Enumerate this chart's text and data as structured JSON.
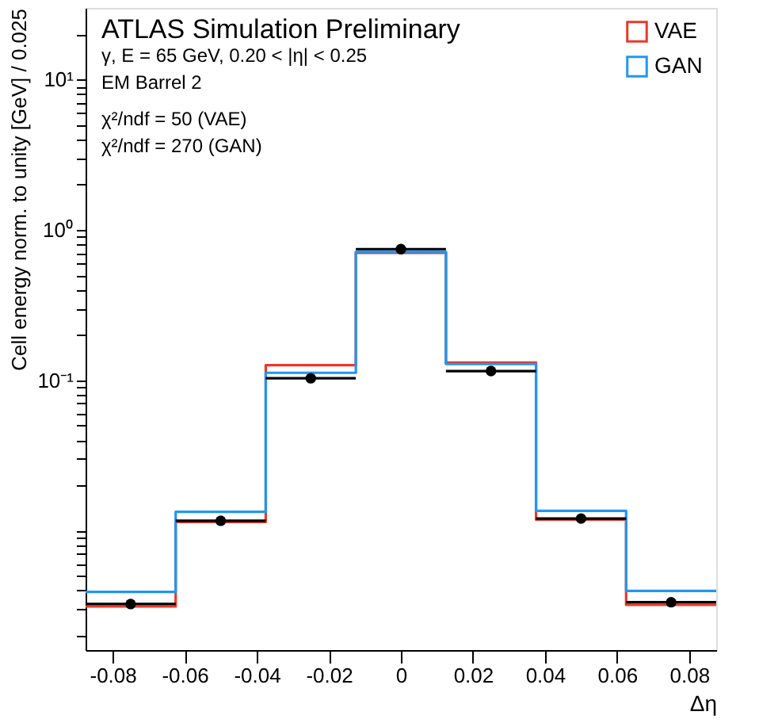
{
  "chart_data": {
    "type": "histogram",
    "xlabel": "Δη",
    "ylabel": "Cell energy norm. to unity [GeV] / 0.025",
    "bins": [
      -0.0875,
      -0.0625,
      -0.0375,
      -0.0125,
      0.0125,
      0.0375,
      0.0625,
      0.0875
    ],
    "series": [
      {
        "name": "VAE",
        "color": "#e8392a",
        "values": [
          0.00312,
          0.0114,
          0.126,
          0.705,
          0.131,
          0.0118,
          0.0032
        ]
      },
      {
        "name": "GAN",
        "color": "#2196f3",
        "values": [
          0.0039,
          0.0133,
          0.112,
          0.716,
          0.128,
          0.0135,
          0.00396
        ]
      },
      {
        "type": "scatter",
        "color": "#000000",
        "x": [
          -0.075,
          -0.05,
          -0.025,
          0,
          0.025,
          0.05,
          0.075
        ],
        "values": [
          0.00324,
          0.0116,
          0.103,
          0.745,
          0.115,
          0.012,
          0.00333
        ],
        "xerrors": [
          0.0125,
          0.0125,
          0.0125,
          0.0125,
          0.0125,
          0.0125,
          0.0125
        ]
      }
    ],
    "marker": "circle",
    "log": true,
    "grid": false,
    "legend": "top right",
    "xlim": [
      -0.0875,
      0.0875
    ],
    "xticks": [
      -0.08,
      -0.06,
      -0.04,
      -0.02,
      0,
      0.02,
      0.04,
      0.06,
      0.08
    ],
    "ylim": [
      0.0016,
      30
    ],
    "yticks": [
      {
        "value": 0.002,
        "label": null
      },
      {
        "value": 0.003,
        "label": null
      },
      {
        "value": 0.004,
        "label": null
      },
      {
        "value": 0.005,
        "label": null
      },
      {
        "value": 0.006,
        "label": null
      },
      {
        "value": 0.007,
        "label": null
      },
      {
        "value": 0.008,
        "label": null
      },
      {
        "value": 0.009,
        "label": null
      },
      {
        "value": 0.01,
        "label": null
      },
      {
        "value": 0.02,
        "label": null
      },
      {
        "value": 0.03,
        "label": null
      },
      {
        "value": 0.04,
        "label": null
      },
      {
        "value": 0.05,
        "label": null
      },
      {
        "value": 0.06,
        "label": null
      },
      {
        "value": 0.07,
        "label": null
      },
      {
        "value": 0.08,
        "label": null
      },
      {
        "value": 0.09,
        "label": null
      },
      {
        "value": 0.1,
        "label": "10⁻¹"
      },
      {
        "value": 0.2,
        "label": null
      },
      {
        "value": 0.3,
        "label": null
      },
      {
        "value": 0.4,
        "label": null
      },
      {
        "value": 0.5,
        "label": null
      },
      {
        "value": 0.6,
        "label": null
      },
      {
        "value": 0.7,
        "label": null
      },
      {
        "value": 0.8,
        "label": null
      },
      {
        "value": 0.9,
        "label": null
      },
      {
        "value": 1,
        "label": "10⁰"
      },
      {
        "value": 2,
        "label": null
      },
      {
        "value": 3,
        "label": null
      },
      {
        "value": 4,
        "label": null
      },
      {
        "value": 5,
        "label": null
      },
      {
        "value": 6,
        "label": null
      },
      {
        "value": 7,
        "label": null
      },
      {
        "value": 8,
        "label": null
      },
      {
        "value": 9,
        "label": null
      },
      {
        "value": 10,
        "label": "10¹"
      },
      {
        "value": 20,
        "label": null
      }
    ],
    "annotations": [
      "ATLAS Simulation Preliminary",
      "γ, E = 65 GeV, 0.20 < |η| < 0.25",
      "EM Barrel 2",
      "χ²/ndf = 50 (VAE)",
      "χ²/ndf = 270 (GAN)"
    ]
  }
}
